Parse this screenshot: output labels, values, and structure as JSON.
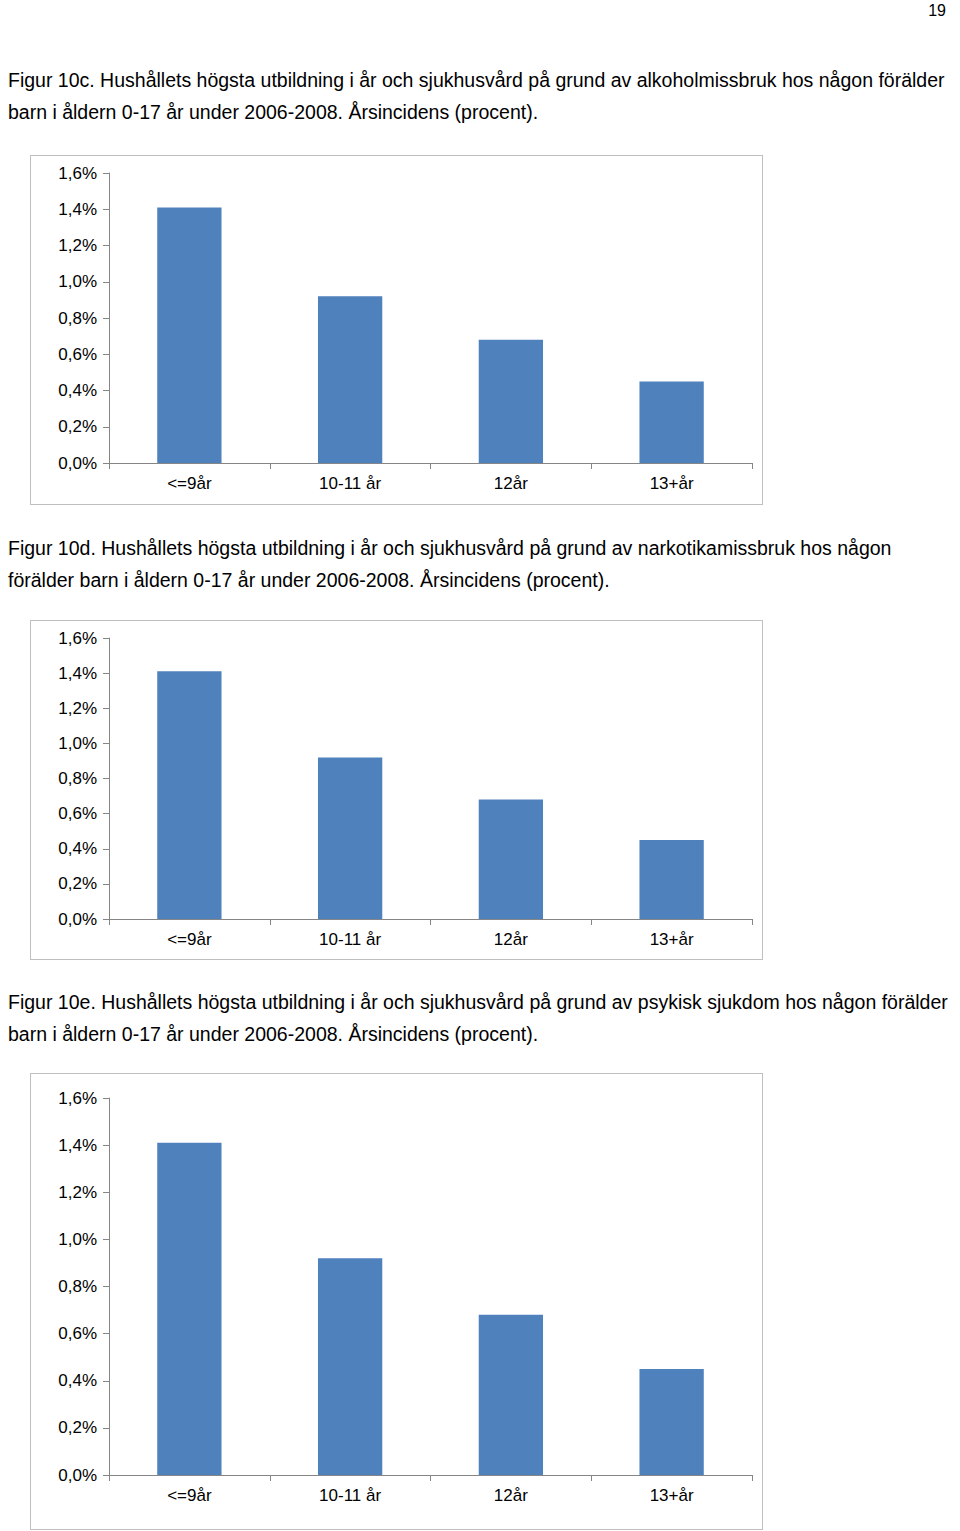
{
  "page_number": "19",
  "chart_data": [
    {
      "type": "bar",
      "title": "Figur 10c. Hushållets högsta utbildning i år och sjukhusvård på grund av alkoholmissbruk hos någon förälder barn i åldern 0-17 år under 2006-2008. Årsincidens (procent).",
      "categories": [
        "<=9år",
        "10-11 år",
        "12år",
        "13+år"
      ],
      "values": [
        1.41,
        0.92,
        0.68,
        0.45
      ],
      "color": "#4f81bd",
      "ylim": [
        0,
        1.6
      ],
      "yticks": [
        {
          "value": 0,
          "label": "0,0%"
        },
        {
          "value": 0.2,
          "label": "0,2%"
        },
        {
          "value": 0.4,
          "label": "0,4%"
        },
        {
          "value": 0.6,
          "label": "0,6%"
        },
        {
          "value": 0.8,
          "label": "0,8%"
        },
        {
          "value": 1.0,
          "label": "1,0%"
        },
        {
          "value": 1.2,
          "label": "1,2%"
        },
        {
          "value": 1.4,
          "label": "1,4%"
        },
        {
          "value": 1.6,
          "label": "1,6%"
        }
      ],
      "grid": false
    },
    {
      "type": "bar",
      "title": "Figur 10d. Hushållets högsta utbildning i år och sjukhusvård på grund av narkotikamissbruk hos någon förälder barn i åldern 0-17 år under 2006-2008. Årsincidens (procent).",
      "categories": [
        "<=9år",
        "10-11 år",
        "12år",
        "13+år"
      ],
      "values": [
        1.41,
        0.92,
        0.68,
        0.45
      ],
      "color": "#4f81bd",
      "ylim": [
        0,
        1.6
      ],
      "yticks": [
        {
          "value": 0,
          "label": "0,0%"
        },
        {
          "value": 0.2,
          "label": "0,2%"
        },
        {
          "value": 0.4,
          "label": "0,4%"
        },
        {
          "value": 0.6,
          "label": "0,6%"
        },
        {
          "value": 0.8,
          "label": "0,8%"
        },
        {
          "value": 1.0,
          "label": "1,0%"
        },
        {
          "value": 1.2,
          "label": "1,2%"
        },
        {
          "value": 1.4,
          "label": "1,4%"
        },
        {
          "value": 1.6,
          "label": "1,6%"
        }
      ],
      "grid": false
    },
    {
      "type": "bar",
      "title": "Figur 10e. Hushållets högsta utbildning i år och sjukhusvård på grund av psykisk sjukdom hos någon förälder barn i åldern 0-17 år under 2006-2008. Årsincidens (procent).",
      "categories": [
        "<=9år",
        "10-11 år",
        "12år",
        "13+år"
      ],
      "values": [
        1.41,
        0.92,
        0.68,
        0.45
      ],
      "color": "#4f81bd",
      "ylim": [
        0,
        1.6
      ],
      "yticks": [
        {
          "value": 0,
          "label": "0,0%"
        },
        {
          "value": 0.2,
          "label": "0,2%"
        },
        {
          "value": 0.4,
          "label": "0,4%"
        },
        {
          "value": 0.6,
          "label": "0,6%"
        },
        {
          "value": 0.8,
          "label": "0,8%"
        },
        {
          "value": 1.0,
          "label": "1,0%"
        },
        {
          "value": 1.2,
          "label": "1,2%"
        },
        {
          "value": 1.4,
          "label": "1,4%"
        },
        {
          "value": 1.6,
          "label": "1,6%"
        }
      ],
      "grid": false
    }
  ]
}
